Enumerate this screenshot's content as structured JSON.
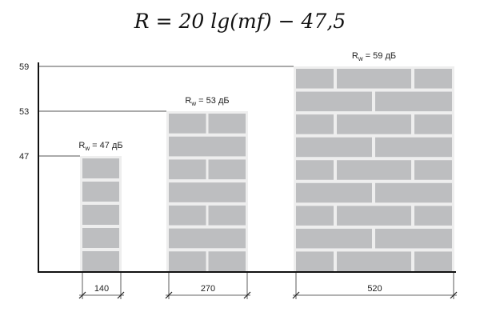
{
  "formula": "R = 20 lg(mf) − 47,5",
  "chart_data": {
    "type": "bar",
    "categories": [
      "140",
      "270",
      "520"
    ],
    "values": [
      47,
      53,
      59
    ],
    "value_labels": [
      {
        "sym": "R",
        "sub": "w",
        "text": " = 47 дБ"
      },
      {
        "sym": "R",
        "sub": "w",
        "text": " = 53 дБ"
      },
      {
        "sym": "R",
        "sub": "w",
        "text": " = 59 дБ"
      }
    ],
    "yticks": [
      "47",
      "53",
      "59"
    ],
    "colors": {
      "brick": "#bdbec0",
      "mortar": "#eeeeee",
      "axis": "#111111"
    }
  }
}
